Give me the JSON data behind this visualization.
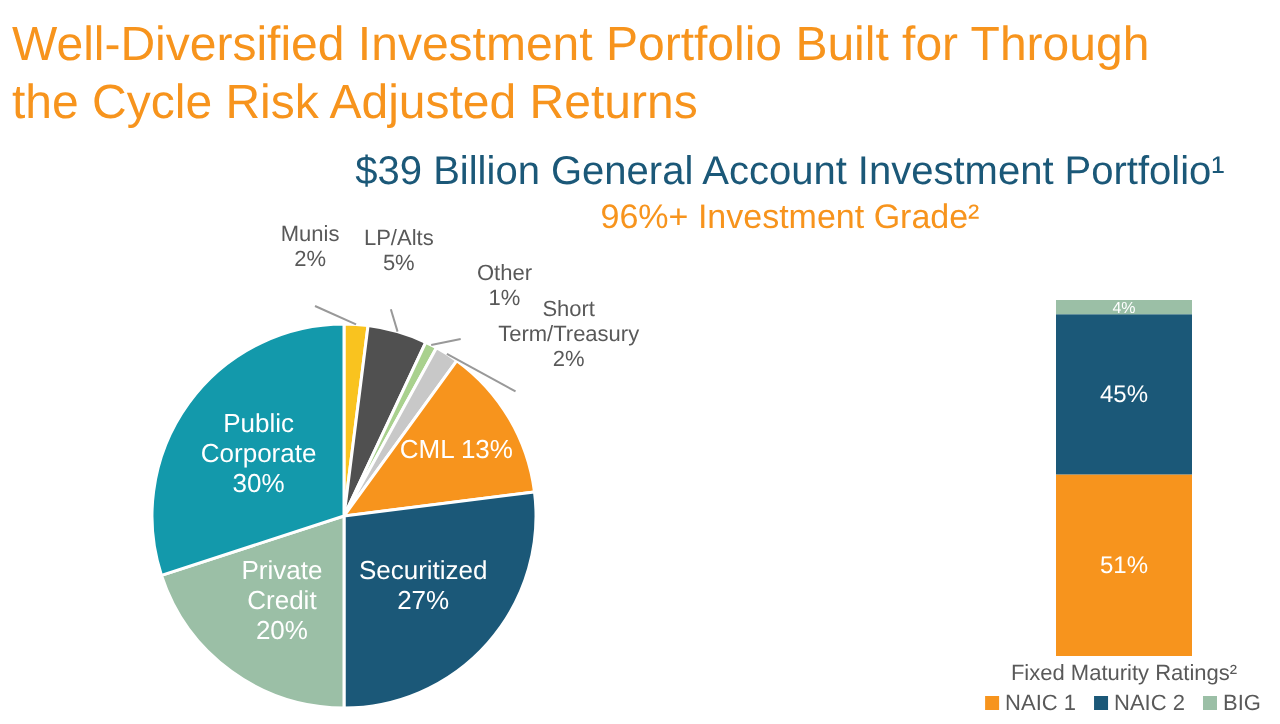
{
  "chart_data": [
    {
      "type": "pie",
      "title": "Well-Diversified Investment Portfolio Built for Through the Cycle Risk Adjusted Returns",
      "subtitle": "$39 Billion General Account Investment Portfolio¹",
      "annotations": [
        "96%+ Investment Grade²"
      ],
      "categories": [
        "Munis",
        "LP/Alts",
        "Other",
        "Short Term/Treasury",
        "CML",
        "Securitized",
        "Private Credit",
        "Public Corporate"
      ],
      "values": [
        2,
        5,
        1,
        2,
        13,
        27,
        20,
        30
      ],
      "value_labels": [
        "2%",
        "5%",
        "1%",
        "2%",
        "13%",
        "27%",
        "20%",
        "30%"
      ],
      "colors": [
        "#f9c31f",
        "#505050",
        "#a9d18e",
        "#c8c8c8",
        "#f7941d",
        "#1b5878",
        "#9bbfa6",
        "#1399ab"
      ]
    },
    {
      "type": "bar",
      "stacked": true,
      "xlabel": "Fixed Maturity Ratings²",
      "categories": [
        null
      ],
      "ylim": [
        0,
        100
      ],
      "legend": "bottom",
      "series": [
        {
          "name": "NAIC 1",
          "color": "#f7941d",
          "values": [
            51
          ],
          "value_labels": [
            "51%"
          ]
        },
        {
          "name": "NAIC 2",
          "color": "#1b5878",
          "values": [
            45
          ],
          "value_labels": [
            "45%"
          ]
        },
        {
          "name": "BIG",
          "color": "#9bbfa6",
          "values": [
            4
          ],
          "value_labels": [
            "4%"
          ]
        }
      ]
    }
  ]
}
